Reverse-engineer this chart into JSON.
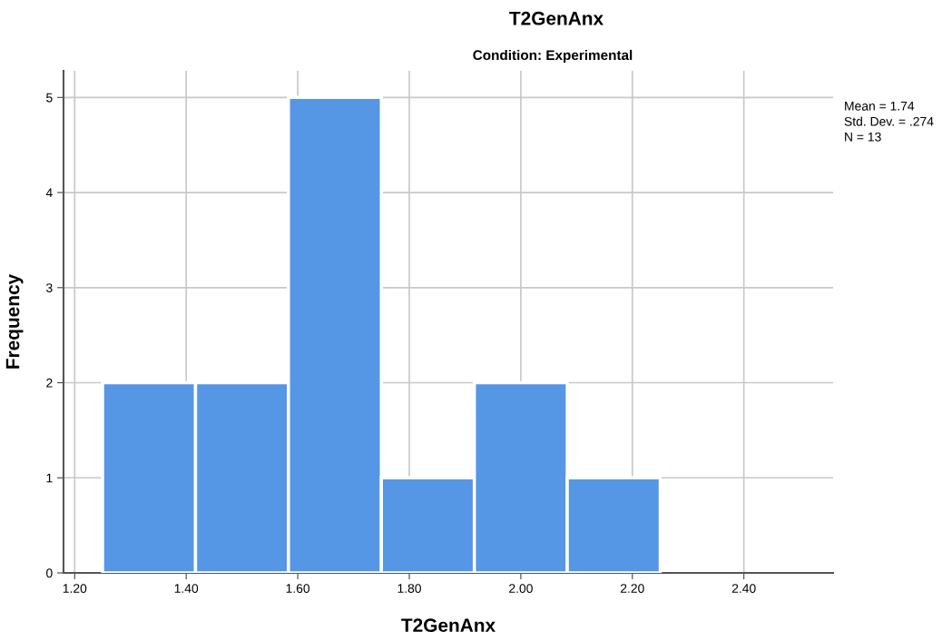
{
  "chart_data": {
    "type": "histogram",
    "title": "T2GenAnx",
    "subtitle": "Condition: Experimental",
    "xlabel": "T2GenAnx",
    "ylabel": "Frequency",
    "bins": [
      1.25,
      1.4167,
      1.5833,
      1.75,
      1.9167,
      2.0833,
      2.25
    ],
    "values": [
      2,
      2,
      5,
      1,
      2,
      1
    ],
    "color": "#5596e5",
    "xlim": [
      1.18,
      2.56
    ],
    "xticks": [
      {
        "value": 1.2,
        "label": "1.20"
      },
      {
        "value": 1.4,
        "label": "1.40"
      },
      {
        "value": 1.6,
        "label": "1.60"
      },
      {
        "value": 1.8,
        "label": "1.80"
      },
      {
        "value": 2.0,
        "label": "2.00"
      },
      {
        "value": 2.2,
        "label": "2.20"
      },
      {
        "value": 2.4,
        "label": "2.40"
      }
    ],
    "ylim": [
      0,
      5.28
    ],
    "yticks": [
      0,
      1,
      2,
      3,
      4,
      5
    ],
    "grid": true,
    "annotations": [
      "Mean = 1.74",
      "Std. Dev. = .274",
      "N = 13"
    ]
  }
}
